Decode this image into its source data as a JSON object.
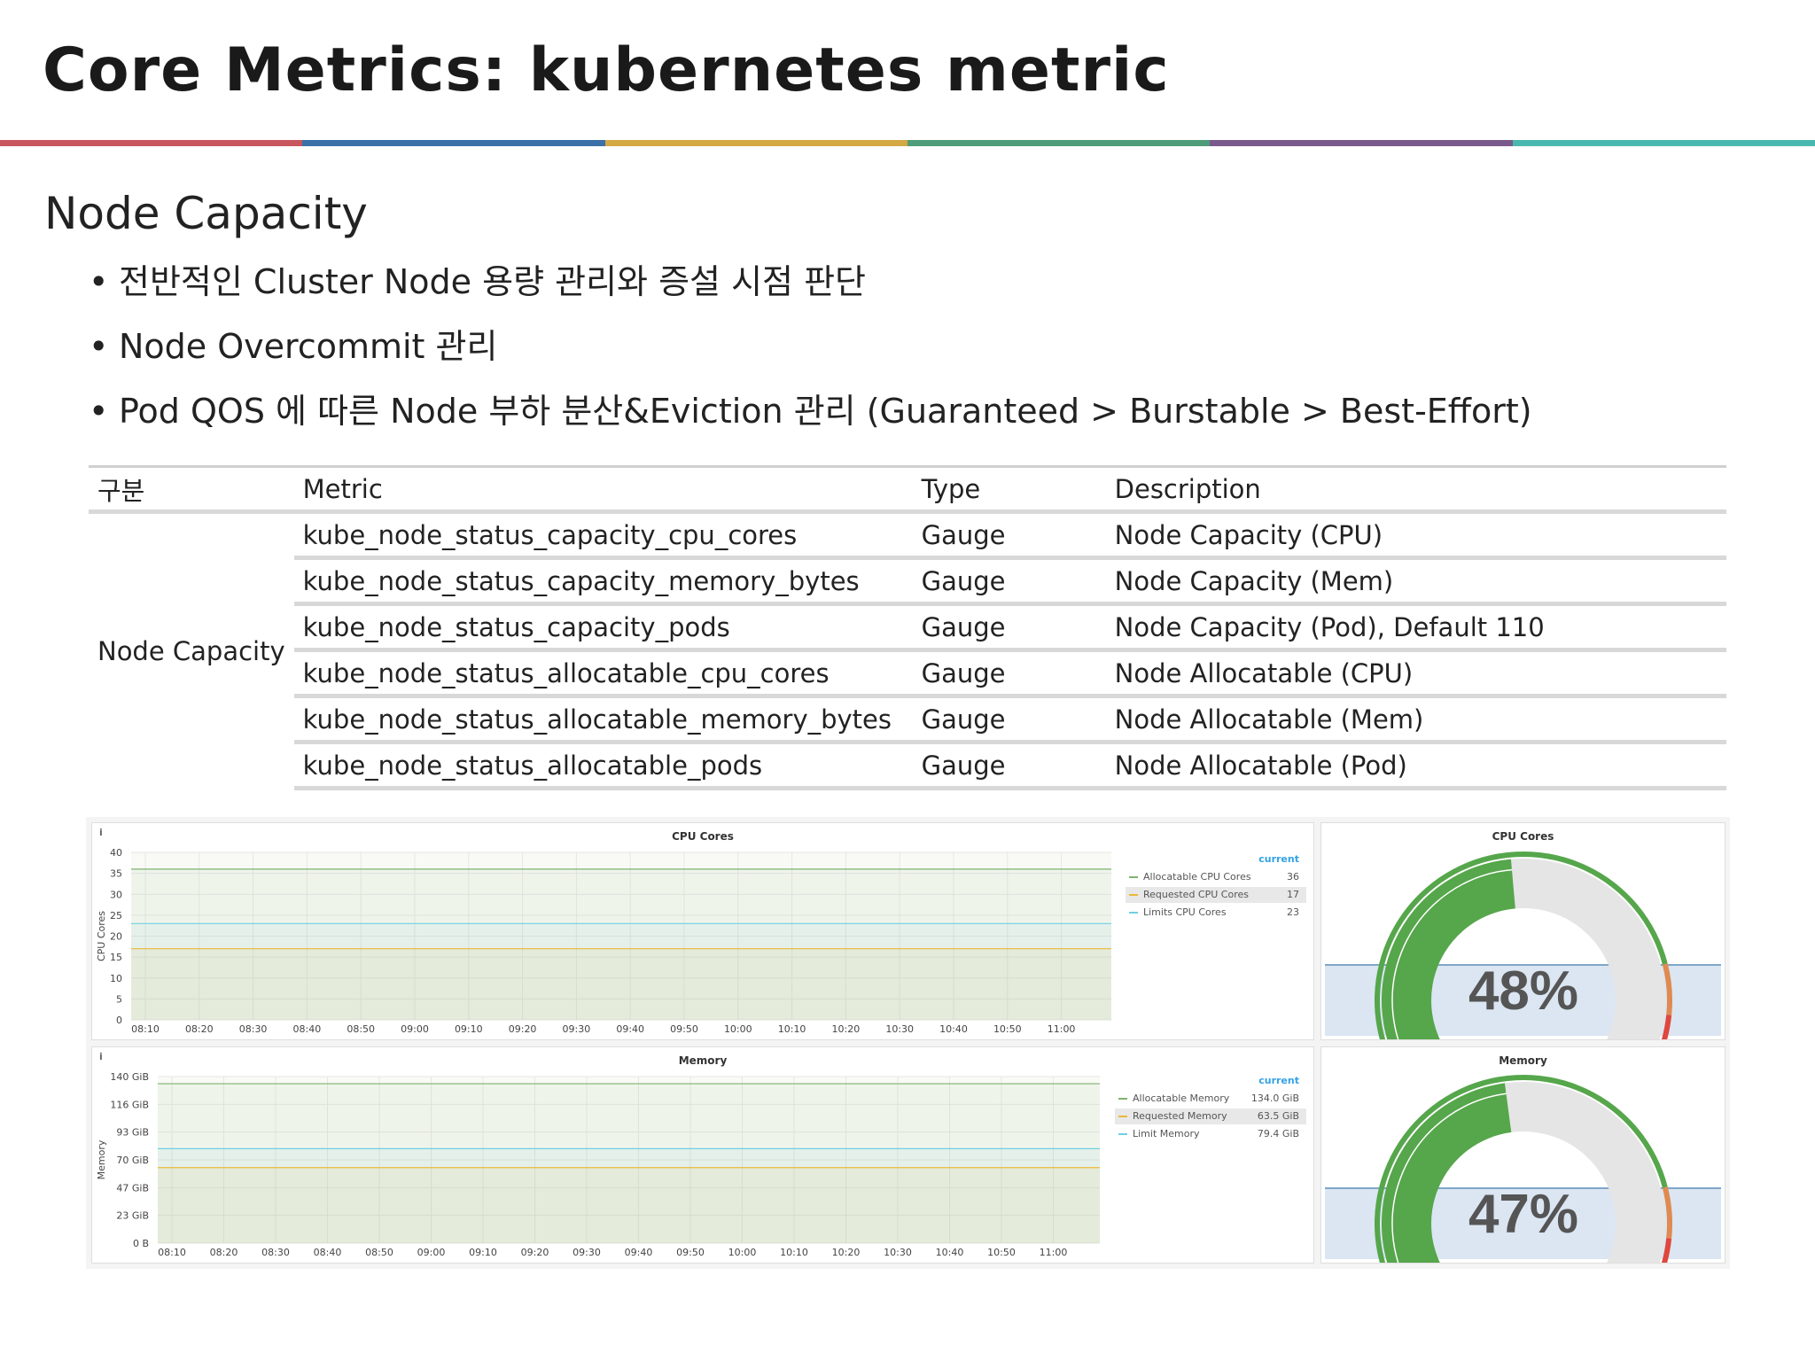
{
  "title": "Core Metrics: kubernetes metric",
  "color_bar": [
    "#c9555e",
    "#3b6fa8",
    "#d4a843",
    "#4e9c7a",
    "#7a5a8c",
    "#4bb8b0"
  ],
  "section_title": "Node Capacity",
  "bullets": [
    "전반적인 Cluster Node 용량 관리와 증설 시점 판단",
    "Node Overcommit 관리",
    "Pod QOS 에 따른 Node 부하 분산&Eviction 관리 (Guaranteed > Burstable > Best-Effort)"
  ],
  "table": {
    "headers": [
      "구분",
      "Metric",
      "Type",
      "Description"
    ],
    "group": "Node Capacity",
    "rows": [
      {
        "metric": "kube_node_status_capacity_cpu_cores",
        "type": "Gauge",
        "desc": "Node Capacity (CPU)"
      },
      {
        "metric": "kube_node_status_capacity_memory_bytes",
        "type": "Gauge",
        "desc": "Node Capacity (Mem)"
      },
      {
        "metric": "kube_node_status_capacity_pods",
        "type": "Gauge",
        "desc": "Node Capacity (Pod), Default 110"
      },
      {
        "metric": "kube_node_status_allocatable_cpu_cores",
        "type": "Gauge",
        "desc": "Node Allocatable (CPU)"
      },
      {
        "metric": "kube_node_status_allocatable_memory_bytes",
        "type": "Gauge",
        "desc": "Node Allocatable (Mem)"
      },
      {
        "metric": "kube_node_status_allocatable_pods",
        "type": "Gauge",
        "desc": "Node Allocatable (Pod)"
      }
    ]
  },
  "info_icon": "i",
  "chart_data": [
    {
      "type": "line",
      "title": "CPU Cores",
      "ylabel": "CPU Cores",
      "ylim": [
        0,
        40
      ],
      "yticks": [
        "0",
        "5",
        "10",
        "15",
        "20",
        "25",
        "30",
        "35",
        "40"
      ],
      "xticks": [
        "08:10",
        "08:20",
        "08:30",
        "08:40",
        "08:50",
        "09:00",
        "09:10",
        "09:20",
        "09:30",
        "09:40",
        "09:50",
        "10:00",
        "10:10",
        "10:20",
        "10:30",
        "10:40",
        "10:50",
        "11:00"
      ],
      "legend_header": "current",
      "series": [
        {
          "name": "Allocatable CPU Cores",
          "value": 36,
          "current": "36",
          "color": "#7eb26d"
        },
        {
          "name": "Requested CPU Cores",
          "value": 17,
          "current": "17",
          "color": "#eab839"
        },
        {
          "name": "Limits CPU Cores",
          "value": 23,
          "current": "23",
          "color": "#6ed0e0"
        }
      ]
    },
    {
      "type": "line",
      "title": "Memory",
      "ylabel": "Memory",
      "ylim": [
        0,
        140
      ],
      "yticks": [
        "0 B",
        "23 GiB",
        "47 GiB",
        "70 GiB",
        "93 GiB",
        "116 GiB",
        "140 GiB"
      ],
      "xticks": [
        "08:10",
        "08:20",
        "08:30",
        "08:40",
        "08:50",
        "09:00",
        "09:10",
        "09:20",
        "09:30",
        "09:40",
        "09:50",
        "10:00",
        "10:10",
        "10:20",
        "10:30",
        "10:40",
        "10:50",
        "11:00"
      ],
      "legend_header": "current",
      "series": [
        {
          "name": "Allocatable Memory",
          "value": 134.0,
          "current": "134.0 GiB",
          "color": "#7eb26d"
        },
        {
          "name": "Requested Memory",
          "value": 63.5,
          "current": "63.5 GiB",
          "color": "#eab839"
        },
        {
          "name": "Limit Memory",
          "value": 79.4,
          "current": "79.4 GiB",
          "color": "#6ed0e0"
        }
      ]
    }
  ],
  "gauges": [
    {
      "title": "CPU Cores",
      "percent": 48,
      "label": "48%"
    },
    {
      "title": "Memory",
      "percent": 47,
      "label": "47%"
    }
  ]
}
